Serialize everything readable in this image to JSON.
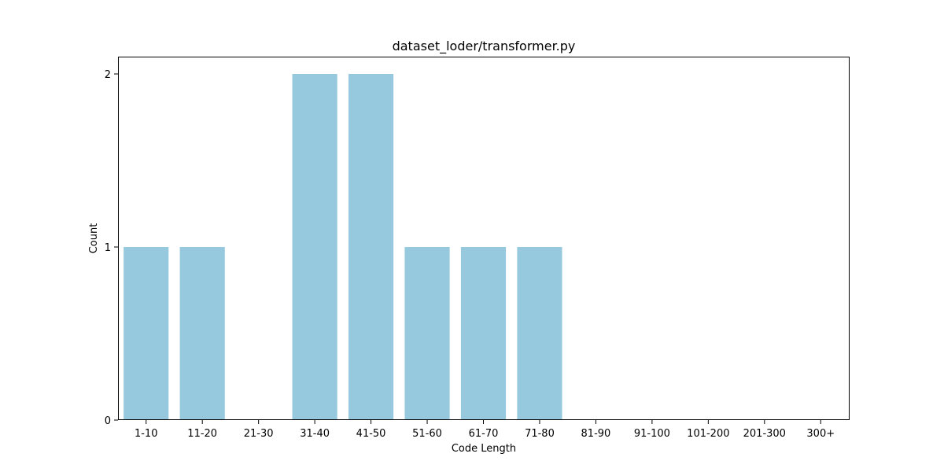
{
  "chart_data": {
    "type": "bar",
    "title": "dataset_loder/transformer.py",
    "xlabel": "Code Length",
    "ylabel": "Count",
    "categories": [
      "1-10",
      "11-20",
      "21-30",
      "31-40",
      "41-50",
      "51-60",
      "61-70",
      "71-80",
      "81-90",
      "91-100",
      "101-200",
      "201-300",
      "300+"
    ],
    "values": [
      1,
      1,
      0,
      2,
      2,
      1,
      1,
      1,
      0,
      0,
      0,
      0,
      0
    ],
    "ylim": [
      0,
      2.1
    ],
    "yticks": [
      0,
      1,
      2
    ],
    "bar_color": "#96c9de",
    "grid": false,
    "legend": "none"
  }
}
